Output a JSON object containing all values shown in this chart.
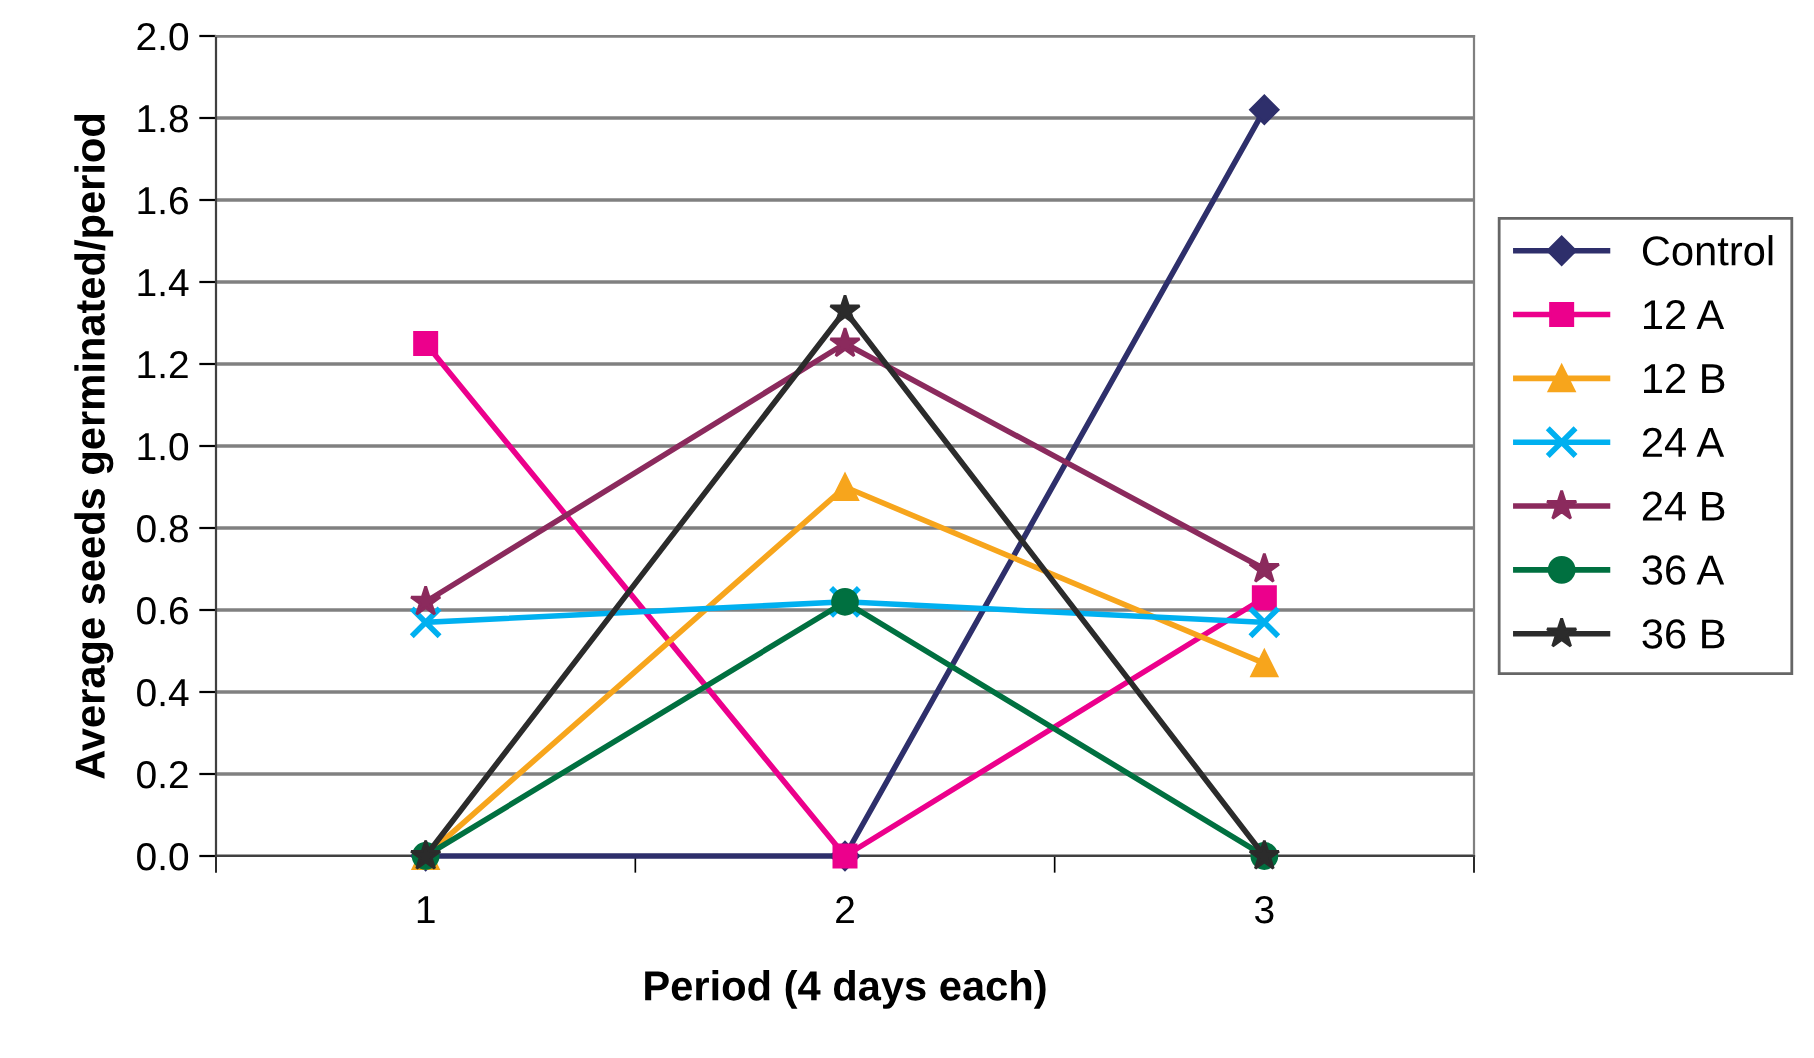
{
  "chart_data": {
    "type": "line",
    "xlabel": "Period (4 days each)",
    "ylabel": "Average seeds germinated/period",
    "categories": [
      "1",
      "2",
      "3"
    ],
    "ylim": [
      0,
      2
    ],
    "yticks": [
      {
        "value": 0,
        "label": "0.0"
      },
      {
        "value": 0.2,
        "label": "0.2"
      },
      {
        "value": 0.4,
        "label": "0.4"
      },
      {
        "value": 0.6,
        "label": "0.6"
      },
      {
        "value": 0.8,
        "label": "0.8"
      },
      {
        "value": 1,
        "label": "1.0"
      },
      {
        "value": 1.2,
        "label": "1.2"
      },
      {
        "value": 1.4,
        "label": "1.4"
      },
      {
        "value": 1.6,
        "label": "1.6"
      },
      {
        "value": 1.8,
        "label": "1.8"
      },
      {
        "value": 2,
        "label": "2.0"
      }
    ],
    "grid": "y",
    "legend": "right",
    "series": [
      {
        "name": "Control",
        "color": "#2e2f6b",
        "marker": "diamond",
        "values": [
          0,
          0,
          1.82
        ]
      },
      {
        "name": "12 A",
        "color": "#ec008c",
        "marker": "square",
        "values": [
          1.25,
          0,
          0.63
        ]
      },
      {
        "name": "12 B",
        "color": "#f7a51c",
        "marker": "triangle",
        "values": [
          0,
          0.9,
          0.47
        ]
      },
      {
        "name": "24 A",
        "color": "#00b0f0",
        "marker": "cross",
        "values": [
          0.57,
          0.62,
          0.57
        ]
      },
      {
        "name": "24 B",
        "color": "#8b2a5d",
        "marker": "star",
        "values": [
          0.62,
          1.25,
          0.7
        ]
      },
      {
        "name": "36 A",
        "color": "#007040",
        "marker": "circle",
        "values": [
          0,
          0.62,
          0
        ]
      },
      {
        "name": "36 B",
        "color": "#2b2b2b",
        "marker": "star",
        "values": [
          0,
          1.33,
          0
        ]
      }
    ]
  }
}
